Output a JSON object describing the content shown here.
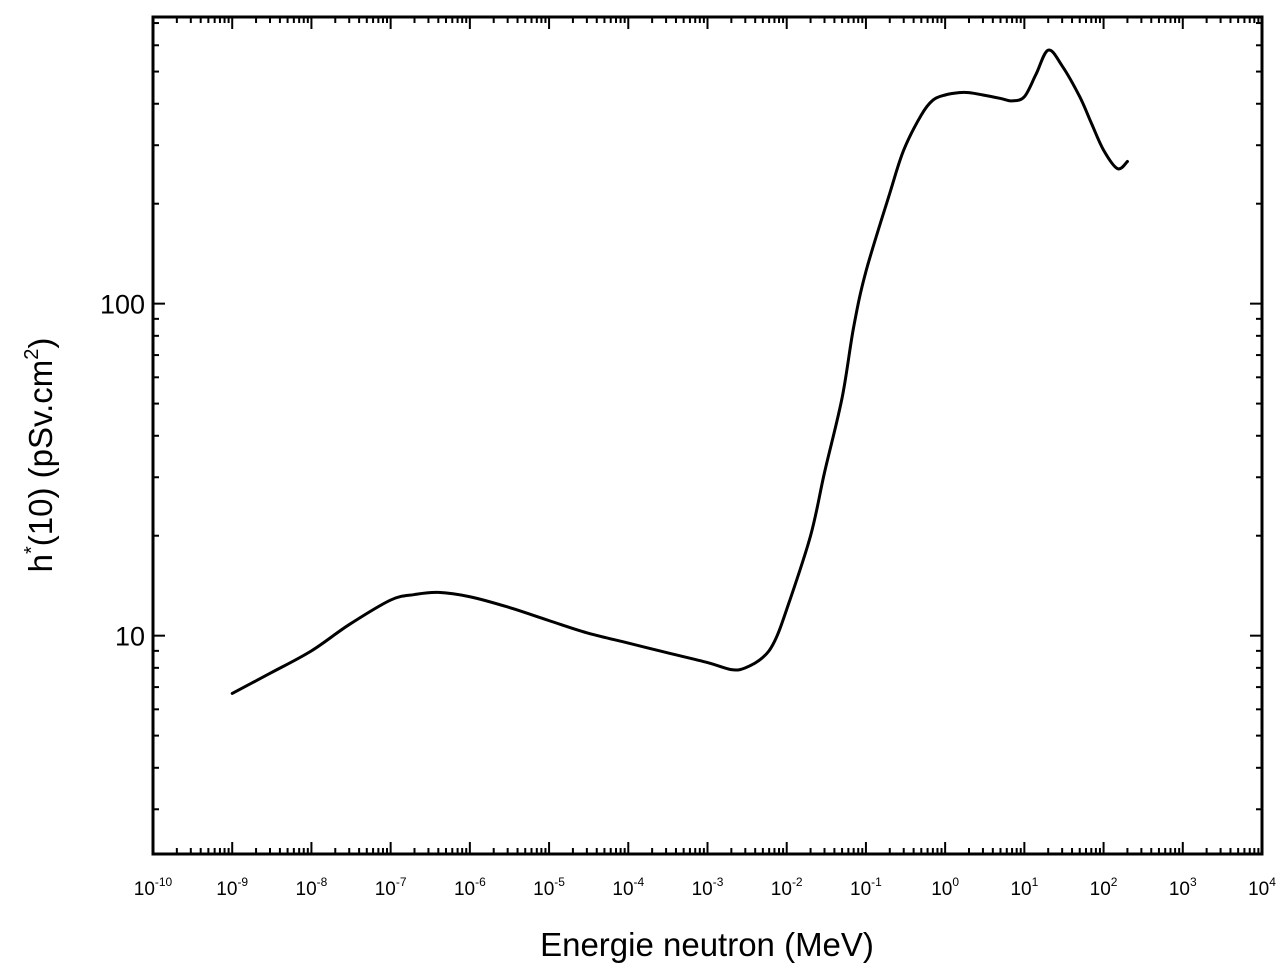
{
  "chart_data": {
    "type": "line",
    "xlabel": "Energie neutron  (MeV)",
    "ylabel": {
      "prefix": "h",
      "star": "*",
      "middle": "(10) (pSv.cm",
      "exponent": "2",
      "suffix": ")"
    },
    "x_scale": "log",
    "y_scale": "log",
    "xlim": [
      1e-10,
      10000
    ],
    "ylim": [
      2.2,
      730
    ],
    "x_ticks": [
      {
        "base": "10",
        "exp": "-10",
        "value": 1e-10
      },
      {
        "base": "10",
        "exp": "-9",
        "value": 1e-09
      },
      {
        "base": "10",
        "exp": "-8",
        "value": 1e-08
      },
      {
        "base": "10",
        "exp": "-7",
        "value": 1e-07
      },
      {
        "base": "10",
        "exp": "-6",
        "value": 1e-06
      },
      {
        "base": "10",
        "exp": "-5",
        "value": 1e-05
      },
      {
        "base": "10",
        "exp": "-4",
        "value": 0.0001
      },
      {
        "base": "10",
        "exp": "-3",
        "value": 0.001
      },
      {
        "base": "10",
        "exp": "-2",
        "value": 0.01
      },
      {
        "base": "10",
        "exp": "-1",
        "value": 0.1
      },
      {
        "base": "10",
        "exp": "0",
        "value": 1
      },
      {
        "base": "10",
        "exp": "1",
        "value": 10
      },
      {
        "base": "10",
        "exp": "2",
        "value": 100
      },
      {
        "base": "10",
        "exp": "3",
        "value": 1000
      },
      {
        "base": "10",
        "exp": "4",
        "value": 10000
      }
    ],
    "y_ticks": [
      {
        "label": "10",
        "value": 10
      },
      {
        "label": "100",
        "value": 100
      }
    ],
    "grid": false,
    "series": [
      {
        "x": [
          1e-09,
          3e-09,
          1e-08,
          3e-08,
          1e-07,
          2e-07,
          4e-07,
          1e-06,
          3e-06,
          1e-05,
          3e-05,
          0.0001,
          0.0003,
          0.001,
          0.002,
          0.003,
          0.005,
          0.007,
          0.01,
          0.02,
          0.03,
          0.05,
          0.07,
          0.1,
          0.2,
          0.3,
          0.5,
          0.7,
          1,
          1.5,
          2,
          3,
          5,
          7,
          10,
          14,
          20,
          30,
          50,
          70,
          100,
          150,
          200
        ],
        "y": [
          6.7,
          7.7,
          9.0,
          10.8,
          12.8,
          13.3,
          13.5,
          13.1,
          12.2,
          11.1,
          10.2,
          9.5,
          8.9,
          8.3,
          7.9,
          8.0,
          8.6,
          9.6,
          12.0,
          20.0,
          31.0,
          52.0,
          85.0,
          125.0,
          215.0,
          290.0,
          370.0,
          410.0,
          425.0,
          432.0,
          432.0,
          425.0,
          415.0,
          408.0,
          420.0,
          490.0,
          580.0,
          520.0,
          420.0,
          350.0,
          290.0,
          255.0,
          268.0
        ]
      }
    ]
  }
}
